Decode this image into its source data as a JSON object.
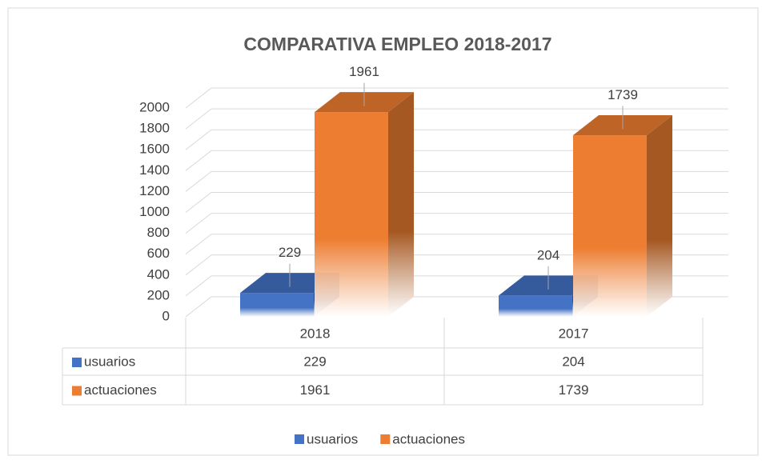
{
  "chart_data": {
    "type": "bar3d",
    "title": "COMPARATIVA EMPLEO 2018-2017",
    "categories": [
      "2018",
      "2017"
    ],
    "series": [
      {
        "name": "usuarios",
        "color": "#4472c4",
        "values": [
          229,
          204
        ]
      },
      {
        "name": "actuaciones",
        "color": "#ed7d31",
        "values": [
          1961,
          1739
        ]
      }
    ],
    "ylim": [
      0,
      2000
    ],
    "yticks": [
      0,
      200,
      400,
      600,
      800,
      1000,
      1200,
      1400,
      1600,
      1800,
      2000
    ],
    "grid": true,
    "legend": "bottom",
    "data_table": true
  }
}
